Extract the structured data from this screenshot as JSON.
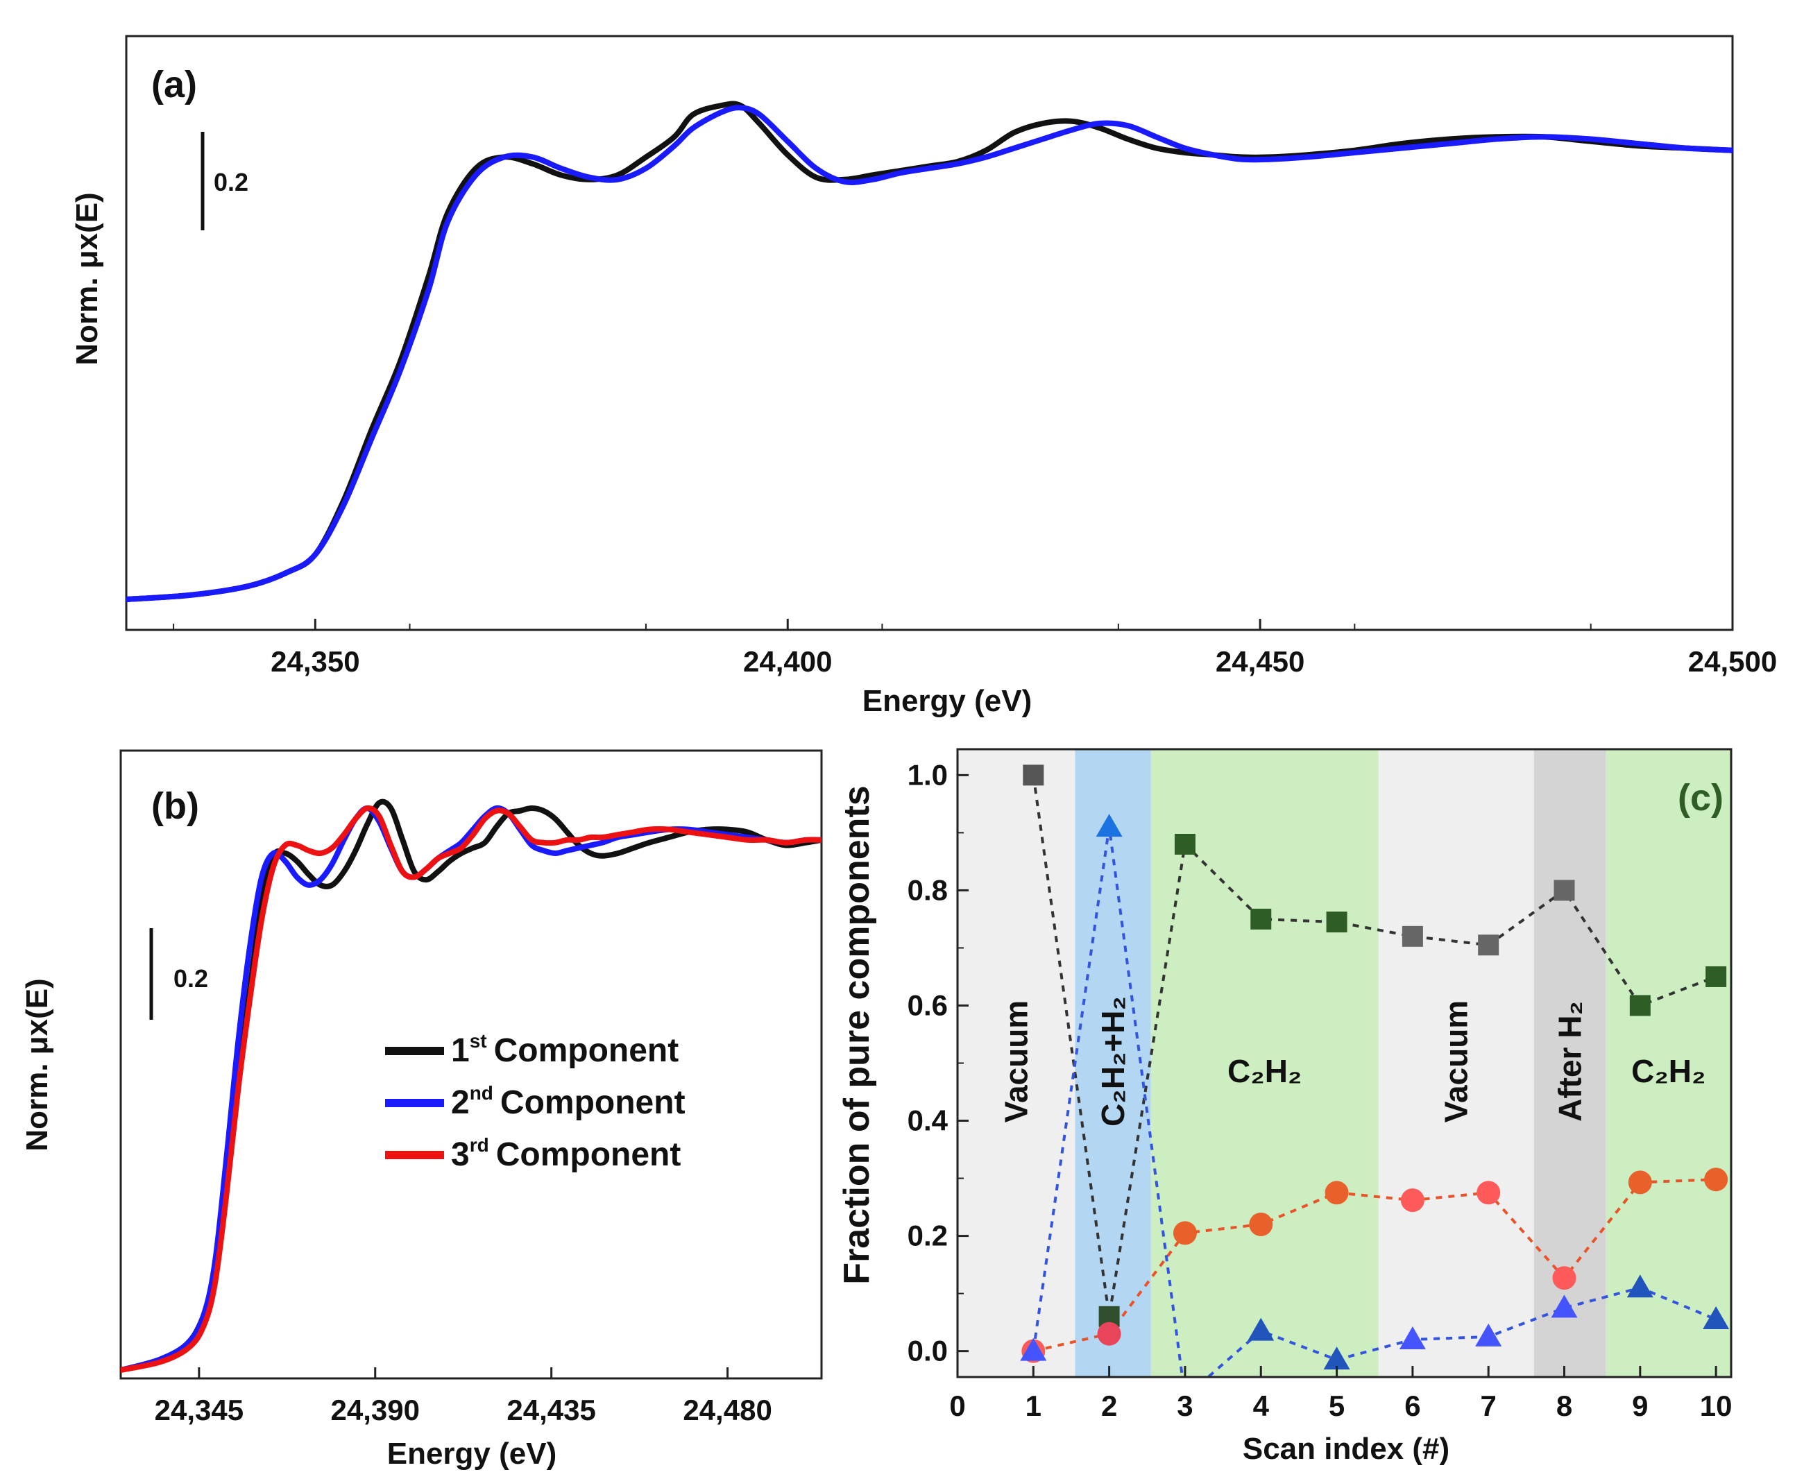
{
  "chart_data": [
    {
      "panel": "(a)",
      "type": "line",
      "xlabel": "Energy (eV)",
      "ylabel": "Norm. μx(E)",
      "xlim": [
        24330,
        24500
      ],
      "ylim": [
        0.0,
        1.22
      ],
      "x_ticks": [
        24350,
        24400,
        24450,
        24500
      ],
      "x_tick_labels": [
        "24,350",
        "24,400",
        "24,450",
        "24,500"
      ],
      "scale_bar_label": "0.2",
      "series": [
        {
          "color": "#111111",
          "x": [
            24330,
            24337,
            24343,
            24347,
            24350,
            24353,
            24356,
            24359,
            24362,
            24364,
            24367,
            24370,
            24373,
            24376,
            24379,
            24382,
            24385,
            24388,
            24390,
            24393,
            24395,
            24397,
            24400,
            24403,
            24406,
            24409,
            24412,
            24415,
            24418,
            24421,
            24424,
            24427,
            24430,
            24433,
            24436,
            24439,
            24442,
            24445,
            24448,
            24451,
            24455,
            24460,
            24465,
            24470,
            24475,
            24480,
            24485,
            24490,
            24495,
            24500
          ],
          "y": [
            0.0,
            0.01,
            0.03,
            0.06,
            0.1,
            0.22,
            0.38,
            0.53,
            0.72,
            0.86,
            0.96,
            0.985,
            0.97,
            0.945,
            0.935,
            0.945,
            0.985,
            1.03,
            1.08,
            1.1,
            1.1,
            1.06,
            0.99,
            0.94,
            0.935,
            0.945,
            0.955,
            0.965,
            0.975,
            1.0,
            1.04,
            1.06,
            1.065,
            1.05,
            1.025,
            1.005,
            0.995,
            0.99,
            0.985,
            0.985,
            0.99,
            1.0,
            1.015,
            1.025,
            1.03,
            1.03,
            1.02,
            1.01,
            1.005,
            1.0
          ]
        },
        {
          "color": "#1a1aff",
          "x": [
            24330,
            24337,
            24343,
            24347,
            24350,
            24353,
            24356,
            24359,
            24362,
            24364,
            24367,
            24370,
            24373,
            24376,
            24379,
            24382,
            24385,
            24388,
            24390,
            24393,
            24395,
            24397,
            24400,
            24403,
            24406,
            24409,
            24412,
            24415,
            24418,
            24421,
            24424,
            24427,
            24430,
            24433,
            24436,
            24439,
            24442,
            24445,
            24448,
            24451,
            24455,
            24460,
            24465,
            24470,
            24475,
            24480,
            24485,
            24490,
            24495,
            24500
          ],
          "y": [
            0.0,
            0.01,
            0.03,
            0.06,
            0.1,
            0.21,
            0.36,
            0.51,
            0.69,
            0.84,
            0.945,
            0.985,
            0.985,
            0.96,
            0.94,
            0.935,
            0.96,
            1.01,
            1.05,
            1.085,
            1.095,
            1.08,
            1.02,
            0.96,
            0.93,
            0.935,
            0.95,
            0.96,
            0.97,
            0.985,
            1.005,
            1.025,
            1.045,
            1.06,
            1.055,
            1.03,
            1.005,
            0.99,
            0.98,
            0.98,
            0.985,
            0.995,
            1.005,
            1.015,
            1.025,
            1.03,
            1.025,
            1.015,
            1.005,
            1.0
          ]
        }
      ]
    },
    {
      "panel": "(b)",
      "type": "line",
      "xlabel": "Energy (eV)",
      "ylabel": "Norm. μx(E)",
      "xlim": [
        24325,
        24504
      ],
      "ylim": [
        0.0,
        1.22
      ],
      "x_ticks": [
        24345,
        24390,
        24435,
        24480
      ],
      "x_tick_labels": [
        "24,345",
        "24,390",
        "24,435",
        "24,480"
      ],
      "scale_bar_label": "0.2",
      "legend_placement": "center-right",
      "series": [
        {
          "name": "1st Component",
          "legend_base": "1",
          "legend_sup": "st",
          "legend_text": "Component",
          "color": "#111111",
          "x": [
            24325,
            24335,
            24342,
            24346,
            24349,
            24352,
            24355,
            24358,
            24361,
            24364,
            24367,
            24370,
            24373,
            24376,
            24379,
            24382,
            24385,
            24388,
            24391,
            24394,
            24397,
            24400,
            24403,
            24406,
            24409,
            24412,
            24415,
            24418,
            24421,
            24424,
            24427,
            24430,
            24433,
            24436,
            24439,
            24442,
            24445,
            24448,
            24452,
            24456,
            24460,
            24465,
            24470,
            24475,
            24480,
            24485,
            24490,
            24495,
            24500,
            24504
          ],
          "y": [
            0.0,
            0.02,
            0.05,
            0.1,
            0.18,
            0.35,
            0.55,
            0.72,
            0.88,
            0.97,
            0.975,
            0.96,
            0.935,
            0.915,
            0.915,
            0.94,
            0.98,
            1.03,
            1.07,
            1.06,
            1.0,
            0.94,
            0.925,
            0.94,
            0.96,
            0.975,
            0.985,
            0.995,
            1.025,
            1.05,
            1.055,
            1.06,
            1.055,
            1.04,
            1.015,
            0.99,
            0.975,
            0.97,
            0.975,
            0.985,
            0.995,
            1.005,
            1.015,
            1.02,
            1.02,
            1.015,
            1.0,
            0.99,
            0.995,
            1.0
          ]
        },
        {
          "name": "2nd Component",
          "legend_base": "2",
          "legend_sup": "nd",
          "legend_text": "Component",
          "color": "#1a1aff",
          "x": [
            24325,
            24335,
            24342,
            24346,
            24349,
            24352,
            24355,
            24358,
            24361,
            24364,
            24367,
            24370,
            24373,
            24376,
            24379,
            24382,
            24385,
            24388,
            24391,
            24394,
            24397,
            24400,
            24403,
            24406,
            24409,
            24412,
            24415,
            24418,
            24421,
            24424,
            24427,
            24430,
            24433,
            24436,
            24439,
            24442,
            24445,
            24448,
            24452,
            24456,
            24460,
            24465,
            24470,
            24475,
            24480,
            24485,
            24490,
            24495,
            24500,
            24504
          ],
          "y": [
            0.0,
            0.02,
            0.05,
            0.1,
            0.2,
            0.4,
            0.62,
            0.8,
            0.93,
            0.975,
            0.96,
            0.93,
            0.915,
            0.925,
            0.955,
            1.0,
            1.04,
            1.06,
            1.035,
            0.985,
            0.94,
            0.93,
            0.945,
            0.965,
            0.98,
            0.995,
            1.02,
            1.045,
            1.06,
            1.05,
            1.02,
            0.99,
            0.98,
            0.975,
            0.98,
            0.985,
            0.99,
            0.995,
            1.005,
            1.01,
            1.015,
            1.02,
            1.02,
            1.015,
            1.01,
            1.005,
            1.0,
            0.995,
            1.0,
            1.0
          ]
        },
        {
          "name": "3rd Component",
          "legend_base": "3",
          "legend_sup": "rd",
          "legend_text": "Component",
          "color": "#ee1111",
          "x": [
            24325,
            24335,
            24342,
            24346,
            24349,
            24352,
            24355,
            24358,
            24361,
            24364,
            24367,
            24370,
            24373,
            24376,
            24379,
            24382,
            24385,
            24388,
            24391,
            24394,
            24397,
            24400,
            24403,
            24406,
            24409,
            24412,
            24415,
            24418,
            24421,
            24424,
            24427,
            24430,
            24433,
            24436,
            24439,
            24442,
            24445,
            24448,
            24452,
            24456,
            24460,
            24465,
            24470,
            24475,
            24480,
            24485,
            24490,
            24495,
            24500,
            24504
          ],
          "y": [
            0.0,
            0.015,
            0.04,
            0.08,
            0.16,
            0.33,
            0.53,
            0.7,
            0.85,
            0.95,
            0.99,
            0.99,
            0.98,
            0.975,
            0.985,
            1.01,
            1.04,
            1.06,
            1.045,
            0.99,
            0.94,
            0.93,
            0.945,
            0.965,
            0.975,
            0.985,
            1.01,
            1.04,
            1.055,
            1.05,
            1.025,
            1.0,
            0.995,
            0.995,
            1.0,
            1.0,
            1.005,
            1.005,
            1.01,
            1.015,
            1.02,
            1.02,
            1.015,
            1.01,
            1.005,
            1.0,
            1.0,
            0.995,
            1.0,
            1.0
          ]
        }
      ]
    },
    {
      "panel": "(c)",
      "type": "scatter",
      "xlabel": "Scan index (#)",
      "ylabel": "Fraction of pure components",
      "xlim": [
        0,
        10.2
      ],
      "ylim": [
        -0.045,
        1.045
      ],
      "x_ticks": [
        0,
        1,
        2,
        3,
        4,
        5,
        6,
        7,
        8,
        9,
        10
      ],
      "y_ticks": [
        0.0,
        0.2,
        0.4,
        0.6,
        0.8,
        1.0
      ],
      "y_tick_labels": [
        "0.0",
        "0.2",
        "0.4",
        "0.6",
        "0.8",
        "1.0"
      ],
      "regions": [
        {
          "from": 0,
          "to": 1.55,
          "color": "#efefef",
          "label": "Vacuum"
        },
        {
          "from": 1.55,
          "to": 2.55,
          "color": "#b3d6f2",
          "label": "C₂H₂+H₂"
        },
        {
          "from": 2.55,
          "to": 5.55,
          "color": "#cdeec0",
          "label": "C₂H₂"
        },
        {
          "from": 5.55,
          "to": 7.6,
          "color": "#efefef",
          "label": "Vacuum"
        },
        {
          "from": 7.6,
          "to": 8.55,
          "color": "#d4d4d4",
          "label": "After H₂"
        },
        {
          "from": 8.55,
          "to": 10.2,
          "color": "#cdeec0",
          "label": "C₂H₂"
        }
      ],
      "series": [
        {
          "marker": "square",
          "line_color": "#333333",
          "x": [
            1,
            2,
            3,
            4,
            5,
            6,
            7,
            8,
            9,
            10
          ],
          "y": [
            1.0,
            0.06,
            0.88,
            0.75,
            0.745,
            0.72,
            0.705,
            0.8,
            0.6,
            0.65
          ],
          "marker_colors": [
            "#555555",
            "#2f4f2f",
            "#2e5e26",
            "#2e5e26",
            "#2e5e26",
            "#666666",
            "#666666",
            "#666666",
            "#2e5e26",
            "#2e5e26"
          ]
        },
        {
          "marker": "circle",
          "line_color": "#e8532a",
          "x": [
            1,
            2,
            3,
            4,
            5,
            6,
            7,
            8,
            9,
            10
          ],
          "y": [
            0.0,
            0.03,
            0.205,
            0.22,
            0.275,
            0.262,
            0.275,
            0.127,
            0.293,
            0.298
          ],
          "marker_colors": [
            "#ff5a5a",
            "#e8455a",
            "#e8612a",
            "#e8612a",
            "#e8612a",
            "#ff5a5a",
            "#ff5a5a",
            "#ff5a5a",
            "#e8612a",
            "#e8612a"
          ]
        },
        {
          "marker": "triangle",
          "line_color": "#3355dd",
          "x": [
            1,
            2,
            3,
            4,
            5,
            6,
            7,
            8,
            9,
            10
          ],
          "y": [
            0.0,
            0.91,
            -0.08,
            0.035,
            -0.015,
            0.02,
            0.025,
            0.075,
            0.11,
            0.055
          ],
          "marker_colors": [
            "#4455ff",
            "#1a73e0",
            "#2255bb",
            "#2255bb",
            "#2255bb",
            "#4455ff",
            "#4455ff",
            "#4455ff",
            "#2255bb",
            "#2255bb"
          ]
        }
      ]
    }
  ]
}
